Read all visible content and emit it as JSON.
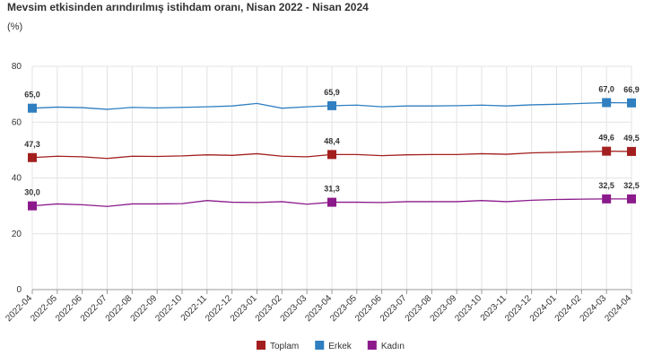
{
  "chart_data": {
    "type": "line",
    "title": "Mevsim etkisinden arındırılmış istihdam oranı, Nisan 2022 - Nisan 2024",
    "subtitle": "(%)",
    "categories": [
      "2022-04",
      "2022-05",
      "2022-06",
      "2022-07",
      "2022-08",
      "2022-09",
      "2022-10",
      "2022-11",
      "2022-12",
      "2023-01",
      "2023-02",
      "2023-03",
      "2023-04",
      "2023-05",
      "2023-06",
      "2023-07",
      "2023-08",
      "2023-09",
      "2023-10",
      "2023-11",
      "2023-12",
      "2024-01",
      "2024-02",
      "2024-03",
      "2024-04"
    ],
    "series": [
      {
        "name": "Toplam",
        "color": "#a31f1f",
        "values": [
          47.3,
          47.8,
          47.6,
          47.0,
          47.8,
          47.7,
          47.9,
          48.3,
          48.1,
          48.7,
          47.8,
          47.6,
          48.4,
          48.4,
          48.0,
          48.3,
          48.4,
          48.4,
          48.7,
          48.5,
          49.0,
          49.2,
          49.4,
          49.6,
          49.5
        ],
        "value_labels": [
          "47,3",
          null,
          null,
          null,
          null,
          null,
          null,
          null,
          null,
          null,
          null,
          null,
          "48,4",
          null,
          null,
          null,
          null,
          null,
          null,
          null,
          null,
          null,
          null,
          "49,6",
          "49,5"
        ]
      },
      {
        "name": "Erkek",
        "color": "#2f7fc1",
        "values": [
          65.0,
          65.4,
          65.2,
          64.6,
          65.3,
          65.1,
          65.3,
          65.5,
          65.8,
          66.7,
          65.0,
          65.5,
          65.9,
          66.1,
          65.5,
          65.8,
          65.8,
          65.9,
          66.1,
          65.8,
          66.2,
          66.4,
          66.7,
          67.0,
          66.9
        ],
        "value_labels": [
          "65,0",
          null,
          null,
          null,
          null,
          null,
          null,
          null,
          null,
          null,
          null,
          null,
          "65,9",
          null,
          null,
          null,
          null,
          null,
          null,
          null,
          null,
          null,
          null,
          "67,0",
          "66,9"
        ]
      },
      {
        "name": "Kadın",
        "color": "#8b1a8b",
        "values": [
          30.0,
          30.7,
          30.4,
          29.8,
          30.7,
          30.7,
          30.8,
          31.9,
          31.3,
          31.2,
          31.5,
          30.6,
          31.3,
          31.3,
          31.2,
          31.5,
          31.5,
          31.5,
          31.9,
          31.5,
          32.0,
          32.3,
          32.4,
          32.5,
          32.5
        ],
        "value_labels": [
          "30,0",
          null,
          null,
          null,
          null,
          null,
          null,
          null,
          null,
          null,
          null,
          null,
          "31,3",
          null,
          null,
          null,
          null,
          null,
          null,
          null,
          null,
          null,
          null,
          "32,5",
          "32,5"
        ]
      }
    ],
    "ylim": [
      0,
      80
    ],
    "yticks": [
      0,
      20,
      40,
      60,
      80
    ],
    "grid": true,
    "legend": "bottom"
  }
}
